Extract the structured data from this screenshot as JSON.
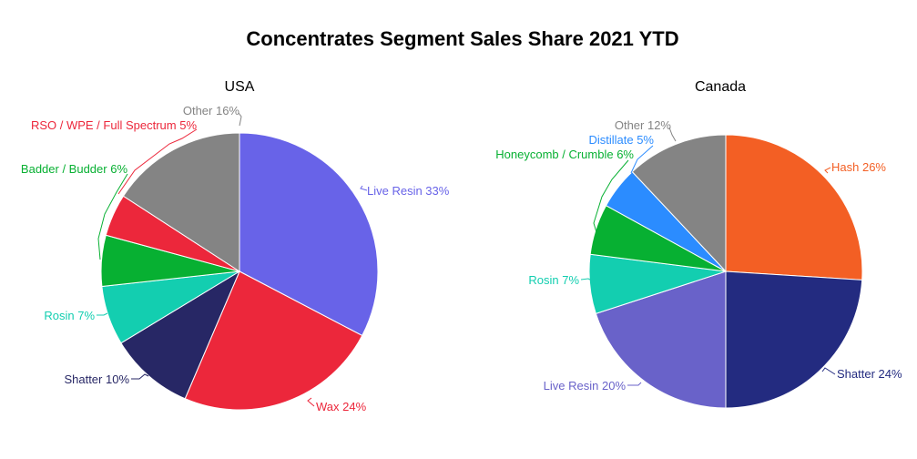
{
  "title": "Concentrates Segment Sales Share 2021 YTD",
  "chart_data": [
    {
      "type": "pie",
      "title": "USA",
      "slices": [
        {
          "label": "Live Resin",
          "value": 33,
          "color": "#6863e8"
        },
        {
          "label": "Wax",
          "value": 24,
          "color": "#ec273b"
        },
        {
          "label": "Shatter",
          "value": 10,
          "color": "#272765"
        },
        {
          "label": "Rosin",
          "value": 7,
          "color": "#13ceb0"
        },
        {
          "label": "Badder / Budder",
          "value": 6,
          "color": "#07b032"
        },
        {
          "label": "RSO / WPE / Full Spectrum",
          "value": 5,
          "color": "#ec273b"
        },
        {
          "label": "Other",
          "value": 16,
          "color": "#848484"
        }
      ]
    },
    {
      "type": "pie",
      "title": "Canada",
      "slices": [
        {
          "label": "Hash",
          "value": 26,
          "color": "#f35f24"
        },
        {
          "label": "Shatter",
          "value": 24,
          "color": "#232b80"
        },
        {
          "label": "Live Resin",
          "value": 20,
          "color": "#6962c9"
        },
        {
          "label": "Rosin",
          "value": 7,
          "color": "#13ceb0"
        },
        {
          "label": "Honeycomb / Crumble",
          "value": 6,
          "color": "#07b032"
        },
        {
          "label": "Distillate",
          "value": 5,
          "color": "#2b8cff"
        },
        {
          "label": "Other",
          "value": 12,
          "color": "#848484"
        }
      ]
    }
  ]
}
